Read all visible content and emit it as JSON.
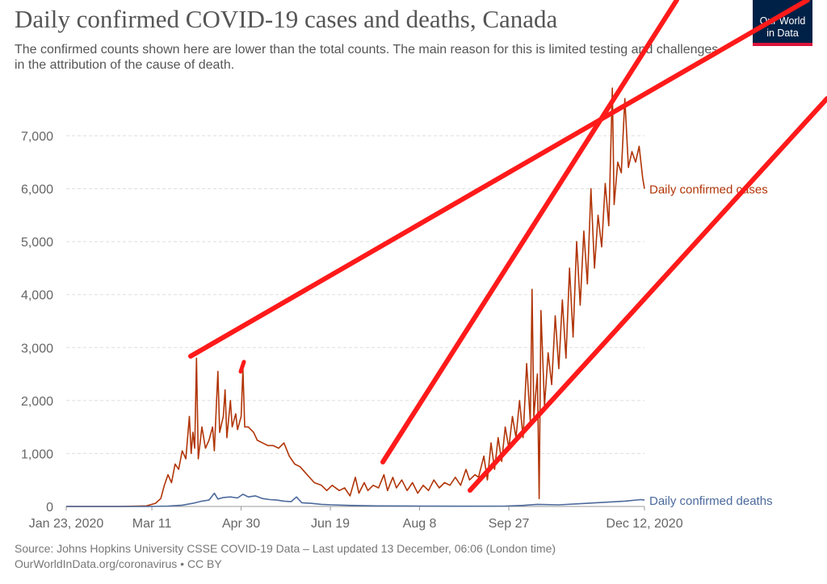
{
  "header": {
    "title": "Daily confirmed COVID-19 cases and deaths, Canada",
    "subtitle": "The confirmed counts shown here are lower than the total counts. The main reason for this is limited testing and challenges in the attribution of the cause of death."
  },
  "logo": {
    "line1": "Our World",
    "line2": "in Data"
  },
  "footer": {
    "source": "Source: Johns Hopkins University CSSE COVID-19 Data – Last updated 13 December, 06:06 (London time)",
    "credit": "OurWorldInData.org/coronavirus • CC BY"
  },
  "colors": {
    "cases": "#b13507",
    "deaths": "#4c6a9c",
    "annotation": "#ff1a1a",
    "logo_bg": "#002147",
    "logo_bar": "#dc143c"
  },
  "chart_data": {
    "type": "line",
    "title": "Daily confirmed COVID-19 cases and deaths, Canada",
    "x_range": [
      "2020-01-23",
      "2020-12-12"
    ],
    "xtick_labels": [
      "Jan 23, 2020",
      "Mar 11",
      "Apr 30",
      "Jun 19",
      "Aug 8",
      "Sep 27",
      "Dec 12, 2020"
    ],
    "xtick_dates": [
      "2020-01-23",
      "2020-03-11",
      "2020-04-30",
      "2020-06-19",
      "2020-08-08",
      "2020-09-27",
      "2020-12-12"
    ],
    "ylim": [
      0,
      7000
    ],
    "yticks": [
      0,
      1000,
      2000,
      3000,
      4000,
      5000,
      6000,
      7000
    ],
    "ytick_labels": [
      "0",
      "1,000",
      "2,000",
      "3,000",
      "4,000",
      "5,000",
      "6,000",
      "7,000"
    ],
    "grid": true,
    "series": [
      {
        "name": "Daily confirmed cases",
        "points": [
          [
            "2020-01-23",
            0
          ],
          [
            "2020-02-20",
            0
          ],
          [
            "2020-03-01",
            4
          ],
          [
            "2020-03-08",
            10
          ],
          [
            "2020-03-13",
            60
          ],
          [
            "2020-03-16",
            150
          ],
          [
            "2020-03-18",
            400
          ],
          [
            "2020-03-20",
            600
          ],
          [
            "2020-03-22",
            450
          ],
          [
            "2020-03-24",
            800
          ],
          [
            "2020-03-26",
            700
          ],
          [
            "2020-03-28",
            1050
          ],
          [
            "2020-03-30",
            900
          ],
          [
            "2020-04-01",
            1700
          ],
          [
            "2020-04-02",
            1000
          ],
          [
            "2020-04-03",
            1400
          ],
          [
            "2020-04-04",
            1100
          ],
          [
            "2020-04-05",
            2800
          ],
          [
            "2020-04-06",
            900
          ],
          [
            "2020-04-08",
            1500
          ],
          [
            "2020-04-09",
            1300
          ],
          [
            "2020-04-10",
            1100
          ],
          [
            "2020-04-12",
            1250
          ],
          [
            "2020-04-14",
            1500
          ],
          [
            "2020-04-15",
            1050
          ],
          [
            "2020-04-17",
            2550
          ],
          [
            "2020-04-18",
            1400
          ],
          [
            "2020-04-20",
            1700
          ],
          [
            "2020-04-21",
            2200
          ],
          [
            "2020-04-22",
            1300
          ],
          [
            "2020-04-24",
            2000
          ],
          [
            "2020-04-25",
            1500
          ],
          [
            "2020-04-27",
            1750
          ],
          [
            "2020-04-28",
            1450
          ],
          [
            "2020-04-30",
            1700
          ],
          [
            "2020-05-01",
            2600
          ],
          [
            "2020-05-02",
            1500
          ],
          [
            "2020-05-04",
            1500
          ],
          [
            "2020-05-07",
            1400
          ],
          [
            "2020-05-09",
            1250
          ],
          [
            "2020-05-12",
            1200
          ],
          [
            "2020-05-15",
            1150
          ],
          [
            "2020-05-18",
            1150
          ],
          [
            "2020-05-21",
            1100
          ],
          [
            "2020-05-24",
            1200
          ],
          [
            "2020-05-27",
            950
          ],
          [
            "2020-05-30",
            800
          ],
          [
            "2020-06-02",
            750
          ],
          [
            "2020-06-06",
            600
          ],
          [
            "2020-06-10",
            450
          ],
          [
            "2020-06-14",
            400
          ],
          [
            "2020-06-17",
            300
          ],
          [
            "2020-06-20",
            400
          ],
          [
            "2020-06-24",
            300
          ],
          [
            "2020-06-27",
            350
          ],
          [
            "2020-06-30",
            200
          ],
          [
            "2020-07-03",
            550
          ],
          [
            "2020-07-05",
            250
          ],
          [
            "2020-07-08",
            450
          ],
          [
            "2020-07-10",
            300
          ],
          [
            "2020-07-13",
            400
          ],
          [
            "2020-07-16",
            350
          ],
          [
            "2020-07-19",
            600
          ],
          [
            "2020-07-21",
            300
          ],
          [
            "2020-07-24",
            550
          ],
          [
            "2020-07-26",
            350
          ],
          [
            "2020-07-29",
            500
          ],
          [
            "2020-08-01",
            300
          ],
          [
            "2020-08-04",
            450
          ],
          [
            "2020-08-07",
            250
          ],
          [
            "2020-08-10",
            400
          ],
          [
            "2020-08-13",
            300
          ],
          [
            "2020-08-16",
            500
          ],
          [
            "2020-08-19",
            350
          ],
          [
            "2020-08-22",
            450
          ],
          [
            "2020-08-25",
            400
          ],
          [
            "2020-08-28",
            550
          ],
          [
            "2020-08-31",
            400
          ],
          [
            "2020-09-03",
            700
          ],
          [
            "2020-09-05",
            500
          ],
          [
            "2020-09-08",
            600
          ],
          [
            "2020-09-10",
            550
          ],
          [
            "2020-09-13",
            950
          ],
          [
            "2020-09-15",
            500
          ],
          [
            "2020-09-17",
            1200
          ],
          [
            "2020-09-19",
            700
          ],
          [
            "2020-09-21",
            1300
          ],
          [
            "2020-09-23",
            850
          ],
          [
            "2020-09-25",
            1500
          ],
          [
            "2020-09-27",
            1100
          ],
          [
            "2020-09-29",
            1700
          ],
          [
            "2020-10-01",
            1300
          ],
          [
            "2020-10-03",
            2000
          ],
          [
            "2020-10-05",
            1300
          ],
          [
            "2020-10-07",
            2700
          ],
          [
            "2020-10-09",
            1600
          ],
          [
            "2020-10-10",
            4100
          ],
          [
            "2020-10-11",
            1700
          ],
          [
            "2020-10-13",
            2500
          ],
          [
            "2020-10-14",
            150
          ],
          [
            "2020-10-15",
            3700
          ],
          [
            "2020-10-17",
            1900
          ],
          [
            "2020-10-19",
            2900
          ],
          [
            "2020-10-21",
            2300
          ],
          [
            "2020-10-23",
            3600
          ],
          [
            "2020-10-25",
            2600
          ],
          [
            "2020-10-27",
            3900
          ],
          [
            "2020-10-29",
            2800
          ],
          [
            "2020-10-31",
            4500
          ],
          [
            "2020-11-02",
            3200
          ],
          [
            "2020-11-04",
            5000
          ],
          [
            "2020-11-06",
            3800
          ],
          [
            "2020-11-08",
            5200
          ],
          [
            "2020-11-10",
            4200
          ],
          [
            "2020-11-12",
            6000
          ],
          [
            "2020-11-14",
            4500
          ],
          [
            "2020-11-16",
            5500
          ],
          [
            "2020-11-18",
            4900
          ],
          [
            "2020-11-20",
            6100
          ],
          [
            "2020-11-22",
            5300
          ],
          [
            "2020-11-24",
            7900
          ],
          [
            "2020-11-25",
            5700
          ],
          [
            "2020-11-27",
            6500
          ],
          [
            "2020-11-29",
            6300
          ],
          [
            "2020-12-01",
            7700
          ],
          [
            "2020-12-03",
            6400
          ],
          [
            "2020-12-05",
            6700
          ],
          [
            "2020-12-07",
            6500
          ],
          [
            "2020-12-09",
            6800
          ],
          [
            "2020-12-11",
            6200
          ],
          [
            "2020-12-12",
            6000
          ]
        ]
      },
      {
        "name": "Daily confirmed deaths",
        "points": [
          [
            "2020-01-23",
            0
          ],
          [
            "2020-03-09",
            0
          ],
          [
            "2020-03-20",
            8
          ],
          [
            "2020-03-28",
            25
          ],
          [
            "2020-04-03",
            60
          ],
          [
            "2020-04-08",
            100
          ],
          [
            "2020-04-12",
            120
          ],
          [
            "2020-04-15",
            250
          ],
          [
            "2020-04-17",
            140
          ],
          [
            "2020-04-20",
            170
          ],
          [
            "2020-04-24",
            180
          ],
          [
            "2020-04-28",
            160
          ],
          [
            "2020-05-01",
            230
          ],
          [
            "2020-05-04",
            180
          ],
          [
            "2020-05-08",
            200
          ],
          [
            "2020-05-12",
            150
          ],
          [
            "2020-05-16",
            130
          ],
          [
            "2020-05-20",
            120
          ],
          [
            "2020-05-24",
            100
          ],
          [
            "2020-05-28",
            90
          ],
          [
            "2020-05-31",
            180
          ],
          [
            "2020-06-03",
            70
          ],
          [
            "2020-06-08",
            60
          ],
          [
            "2020-06-14",
            40
          ],
          [
            "2020-06-20",
            30
          ],
          [
            "2020-06-30",
            20
          ],
          [
            "2020-07-15",
            10
          ],
          [
            "2020-08-08",
            8
          ],
          [
            "2020-09-01",
            5
          ],
          [
            "2020-09-25",
            8
          ],
          [
            "2020-10-05",
            20
          ],
          [
            "2020-10-13",
            40
          ],
          [
            "2020-10-25",
            30
          ],
          [
            "2020-11-05",
            50
          ],
          [
            "2020-11-20",
            80
          ],
          [
            "2020-12-01",
            100
          ],
          [
            "2020-12-10",
            130
          ],
          [
            "2020-12-12",
            120
          ]
        ]
      }
    ]
  }
}
